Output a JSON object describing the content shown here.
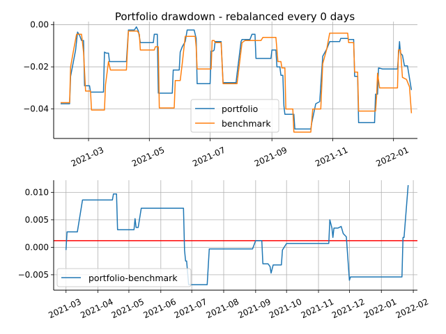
{
  "chart_data": [
    {
      "type": "line",
      "title": "Portfolio drawdown - rebalanced every 0 days",
      "xlabel": "",
      "ylabel": "",
      "xlim": [
        "2021-01-25",
        "2022-01-25"
      ],
      "ylim": [
        -0.054,
        0.0015
      ],
      "x_ticks": [
        "2021-03-01",
        "2021-05-01",
        "2021-07-01",
        "2021-09-01",
        "2021-11-01",
        "2022-01-01"
      ],
      "x_tick_labels": [
        "2021-03",
        "2021-05",
        "2021-07",
        "2021-09",
        "2021-11",
        "2022-01"
      ],
      "y_ticks": [
        0.0,
        -0.02,
        -0.04
      ],
      "y_tick_labels": [
        "0.00",
        "−0.02",
        "−0.04"
      ],
      "grid": true,
      "legend": "bottom-center",
      "series": [
        {
          "name": "portfolio",
          "color": "#1f77b4",
          "points": [
            [
              "2021-02-01",
              -0.0375
            ],
            [
              "2021-02-10",
              -0.0375
            ],
            [
              "2021-02-11",
              -0.0245
            ],
            [
              "2021-02-16",
              -0.012
            ],
            [
              "2021-02-18",
              -0.0035
            ],
            [
              "2021-02-20",
              -0.005
            ],
            [
              "2021-02-22",
              -0.0075
            ],
            [
              "2021-02-24",
              -0.0075
            ],
            [
              "2021-02-25",
              -0.029
            ],
            [
              "2021-03-02",
              -0.029
            ],
            [
              "2021-03-03",
              -0.032
            ],
            [
              "2021-03-16",
              -0.032
            ],
            [
              "2021-03-17",
              -0.013
            ],
            [
              "2021-03-19",
              -0.0135
            ],
            [
              "2021-03-21",
              -0.0135
            ],
            [
              "2021-03-22",
              -0.0175
            ],
            [
              "2021-04-08",
              -0.0175
            ],
            [
              "2021-04-10",
              -0.0025
            ],
            [
              "2021-04-16",
              -0.0025
            ],
            [
              "2021-04-18",
              -0.001
            ],
            [
              "2021-04-20",
              -0.003
            ],
            [
              "2021-04-22",
              -0.0085
            ],
            [
              "2021-05-05",
              -0.0085
            ],
            [
              "2021-05-06",
              -0.0045
            ],
            [
              "2021-05-09",
              -0.0045
            ],
            [
              "2021-05-10",
              -0.0325
            ],
            [
              "2021-05-17",
              -0.0325
            ],
            [
              "2021-05-24",
              -0.0325
            ],
            [
              "2021-05-25",
              -0.0215
            ],
            [
              "2021-05-31",
              -0.0215
            ],
            [
              "2021-06-01",
              -0.013
            ],
            [
              "2021-06-03",
              -0.0105
            ],
            [
              "2021-06-06",
              -0.008
            ],
            [
              "2021-06-08",
              -0.0025
            ],
            [
              "2021-06-15",
              -0.0025
            ],
            [
              "2021-06-17",
              -0.0065
            ],
            [
              "2021-06-18",
              -0.028
            ],
            [
              "2021-07-01",
              -0.028
            ],
            [
              "2021-07-02",
              -0.0125
            ],
            [
              "2021-07-04",
              -0.0125
            ],
            [
              "2021-07-05",
              -0.012
            ],
            [
              "2021-07-06",
              -0.008
            ],
            [
              "2021-07-12",
              -0.008
            ],
            [
              "2021-07-14",
              -0.0275
            ],
            [
              "2021-07-27",
              -0.0275
            ],
            [
              "2021-07-28",
              -0.0235
            ],
            [
              "2021-08-01",
              -0.008
            ],
            [
              "2021-08-02",
              -0.007
            ],
            [
              "2021-08-10",
              -0.007
            ],
            [
              "2021-08-12",
              -0.0045
            ],
            [
              "2021-08-15",
              -0.0045
            ],
            [
              "2021-08-16",
              -0.016
            ],
            [
              "2021-08-31",
              -0.016
            ],
            [
              "2021-09-01",
              -0.012
            ],
            [
              "2021-09-05",
              -0.012
            ],
            [
              "2021-09-06",
              -0.02
            ],
            [
              "2021-09-09",
              -0.02
            ],
            [
              "2021-09-10",
              -0.024
            ],
            [
              "2021-09-12",
              -0.024
            ],
            [
              "2021-09-13",
              -0.0385
            ],
            [
              "2021-09-14",
              -0.0425
            ],
            [
              "2021-09-23",
              -0.0425
            ],
            [
              "2021-09-24",
              -0.0495
            ],
            [
              "2021-10-10",
              -0.0495
            ],
            [
              "2021-10-11",
              -0.0465
            ],
            [
              "2021-10-15",
              -0.0375
            ],
            [
              "2021-10-19",
              -0.0365
            ],
            [
              "2021-10-22",
              -0.015
            ],
            [
              "2021-10-26",
              -0.0115
            ],
            [
              "2021-10-29",
              -0.008
            ],
            [
              "2021-11-08",
              -0.008
            ],
            [
              "2021-11-09",
              -0.0065
            ],
            [
              "2021-11-16",
              -0.0065
            ],
            [
              "2021-11-17",
              -0.007
            ],
            [
              "2021-11-22",
              -0.007
            ],
            [
              "2021-11-23",
              -0.0245
            ],
            [
              "2021-11-26",
              -0.0245
            ],
            [
              "2021-11-27",
              -0.0465
            ],
            [
              "2021-12-13",
              -0.0465
            ],
            [
              "2021-12-14",
              -0.033
            ],
            [
              "2021-12-16",
              -0.033
            ],
            [
              "2021-12-17",
              -0.0205
            ],
            [
              "2021-12-21",
              -0.021
            ],
            [
              "2022-01-05",
              -0.021
            ],
            [
              "2022-01-07",
              -0.008
            ],
            [
              "2022-01-08",
              -0.0135
            ],
            [
              "2022-01-10",
              -0.0145
            ],
            [
              "2022-01-12",
              -0.0195
            ],
            [
              "2022-01-15",
              -0.0195
            ],
            [
              "2022-01-19",
              -0.031
            ]
          ]
        },
        {
          "name": "benchmark",
          "color": "#ff7f0e",
          "points": [
            [
              "2021-02-01",
              -0.037
            ],
            [
              "2021-02-10",
              -0.037
            ],
            [
              "2021-02-11",
              -0.02
            ],
            [
              "2021-02-14",
              -0.012
            ],
            [
              "2021-02-17",
              -0.0045
            ],
            [
              "2021-02-22",
              -0.0045
            ],
            [
              "2021-02-24",
              -0.013
            ],
            [
              "2021-02-26",
              -0.0315
            ],
            [
              "2021-03-03",
              -0.0315
            ],
            [
              "2021-03-04",
              -0.0405
            ],
            [
              "2021-03-17",
              -0.0405
            ],
            [
              "2021-03-18",
              -0.0285
            ],
            [
              "2021-03-21",
              -0.0175
            ],
            [
              "2021-03-23",
              -0.0215
            ],
            [
              "2021-04-08",
              -0.0215
            ],
            [
              "2021-04-10",
              -0.003
            ],
            [
              "2021-04-19",
              -0.003
            ],
            [
              "2021-04-21",
              -0.0045
            ],
            [
              "2021-04-22",
              -0.012
            ],
            [
              "2021-05-06",
              -0.012
            ],
            [
              "2021-05-07",
              -0.0105
            ],
            [
              "2021-05-10",
              -0.0105
            ],
            [
              "2021-05-11",
              -0.0395
            ],
            [
              "2021-05-26",
              -0.0395
            ],
            [
              "2021-05-27",
              -0.0265
            ],
            [
              "2021-06-01",
              -0.0265
            ],
            [
              "2021-06-03",
              -0.0185
            ],
            [
              "2021-06-06",
              -0.0055
            ],
            [
              "2021-06-16",
              -0.0055
            ],
            [
              "2021-06-17",
              -0.0105
            ],
            [
              "2021-06-18",
              -0.021
            ],
            [
              "2021-07-02",
              -0.021
            ],
            [
              "2021-07-03",
              -0.0075
            ],
            [
              "2021-07-05",
              -0.0075
            ],
            [
              "2021-07-06",
              -0.0085
            ],
            [
              "2021-07-12",
              -0.0085
            ],
            [
              "2021-07-14",
              -0.028
            ],
            [
              "2021-07-28",
              -0.028
            ],
            [
              "2021-08-02",
              -0.0085
            ],
            [
              "2021-08-05",
              -0.0075
            ],
            [
              "2021-08-21",
              -0.0075
            ],
            [
              "2021-08-23",
              -0.006
            ],
            [
              "2021-09-05",
              -0.006
            ],
            [
              "2021-09-07",
              -0.0175
            ],
            [
              "2021-09-10",
              -0.0175
            ],
            [
              "2021-09-11",
              -0.0205
            ],
            [
              "2021-09-14",
              -0.0205
            ],
            [
              "2021-09-15",
              -0.04
            ],
            [
              "2021-09-22",
              -0.04
            ],
            [
              "2021-09-23",
              -0.051
            ],
            [
              "2021-10-10",
              -0.051
            ],
            [
              "2021-10-12",
              -0.04
            ],
            [
              "2021-10-20",
              -0.04
            ],
            [
              "2021-10-22",
              -0.0185
            ],
            [
              "2021-10-26",
              -0.0115
            ],
            [
              "2021-10-29",
              -0.004
            ],
            [
              "2021-11-16",
              -0.004
            ],
            [
              "2021-11-17",
              -0.0085
            ],
            [
              "2021-11-22",
              -0.0085
            ],
            [
              "2021-11-23",
              -0.0225
            ],
            [
              "2021-11-26",
              -0.0225
            ],
            [
              "2021-11-27",
              -0.041
            ],
            [
              "2021-12-14",
              -0.041
            ],
            [
              "2021-12-15",
              -0.034
            ],
            [
              "2021-12-16",
              -0.023
            ],
            [
              "2021-12-18",
              -0.03
            ],
            [
              "2022-01-05",
              -0.03
            ],
            [
              "2022-01-06",
              -0.012
            ],
            [
              "2022-01-08",
              -0.012
            ],
            [
              "2022-01-10",
              -0.025
            ],
            [
              "2022-01-14",
              -0.026
            ],
            [
              "2022-01-17",
              -0.0295
            ],
            [
              "2022-01-19",
              -0.042
            ]
          ]
        }
      ]
    },
    {
      "type": "line",
      "title": "",
      "xlabel": "",
      "ylabel": "",
      "xlim": [
        "2021-02-17",
        "2022-02-05"
      ],
      "ylim": [
        -0.0078,
        0.0122
      ],
      "x_ticks": [
        "2021-03-01",
        "2021-04-01",
        "2021-05-01",
        "2021-06-01",
        "2021-07-01",
        "2021-08-01",
        "2021-09-01",
        "2021-10-01",
        "2021-11-01",
        "2021-12-01",
        "2022-01-01",
        "2022-02-01"
      ],
      "x_tick_labels": [
        "2021-03",
        "2021-04",
        "2021-05",
        "2021-06",
        "2021-07",
        "2021-08",
        "2021-09",
        "2021-10",
        "2021-11",
        "2021-12",
        "2022-01",
        "2022-02"
      ],
      "y_ticks": [
        0.01,
        0.005,
        0.0,
        -0.005
      ],
      "y_tick_labels": [
        "0.010",
        "0.005",
        "0.000",
        "−0.005"
      ],
      "grid": true,
      "legend": "bottom-left",
      "hline": {
        "y": 0.0012,
        "color": "#ff0000"
      },
      "series": [
        {
          "name": "portfolio-benchmark",
          "color": "#1f77b4",
          "points": [
            [
              "2021-03-01",
              -0.0005
            ],
            [
              "2021-03-02",
              0.0028
            ],
            [
              "2021-03-12",
              0.0028
            ],
            [
              "2021-03-17",
              0.0086
            ],
            [
              "2021-04-15",
              0.0086
            ],
            [
              "2021-04-16",
              0.0097
            ],
            [
              "2021-04-19",
              0.0097
            ],
            [
              "2021-04-20",
              0.0032
            ],
            [
              "2021-05-06",
              0.0032
            ],
            [
              "2021-05-07",
              0.0052
            ],
            [
              "2021-05-08",
              0.0036
            ],
            [
              "2021-05-10",
              0.0036
            ],
            [
              "2021-05-13",
              0.0071
            ],
            [
              "2021-06-23",
              0.0071
            ],
            [
              "2021-06-24",
              -0.0005
            ],
            [
              "2021-06-25",
              -0.0025
            ],
            [
              "2021-06-26",
              -0.0025
            ],
            [
              "2021-06-28",
              -0.0068
            ],
            [
              "2021-07-16",
              -0.0068
            ],
            [
              "2021-07-18",
              -0.0003
            ],
            [
              "2021-08-29",
              -0.0003
            ],
            [
              "2021-09-01",
              0.0012
            ],
            [
              "2021-09-07",
              0.0012
            ],
            [
              "2021-09-08",
              -0.003
            ],
            [
              "2021-09-13",
              -0.003
            ],
            [
              "2021-09-15",
              -0.0035
            ],
            [
              "2021-09-16",
              -0.0047
            ],
            [
              "2021-09-18",
              -0.0032
            ],
            [
              "2021-09-26",
              -0.0032
            ],
            [
              "2021-09-27",
              -0.0005
            ],
            [
              "2021-10-01",
              0.0007
            ],
            [
              "2021-11-11",
              0.0007
            ],
            [
              "2021-11-12",
              0.005
            ],
            [
              "2021-11-14",
              0.0035
            ],
            [
              "2021-11-15",
              0.0018
            ],
            [
              "2021-11-16",
              0.0035
            ],
            [
              "2021-11-20",
              0.0035
            ],
            [
              "2021-11-23",
              0.0038
            ],
            [
              "2021-11-25",
              0.0025
            ],
            [
              "2021-11-28",
              0.0019
            ],
            [
              "2021-12-01",
              -0.006
            ],
            [
              "2021-12-02",
              -0.0054
            ],
            [
              "2022-01-21",
              -0.0054
            ],
            [
              "2022-01-22",
              0.0018
            ],
            [
              "2022-01-23",
              0.0018
            ],
            [
              "2022-01-27",
              0.0113
            ]
          ]
        }
      ]
    }
  ]
}
